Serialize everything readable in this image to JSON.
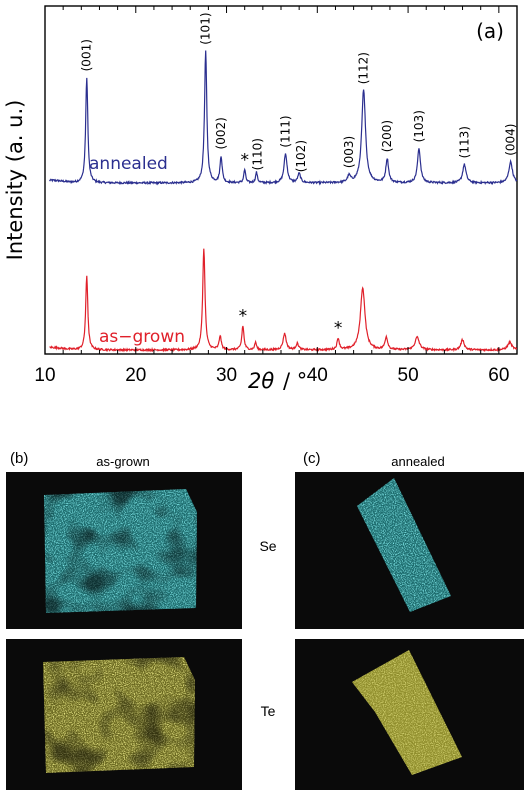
{
  "chart_data": {
    "type": "line",
    "panel_label": "(a)",
    "xlabel_symbol": "2θ",
    "xlabel_unit": "/ °",
    "ylabel": "Intensity (a. u.)",
    "xlim": [
      10,
      62
    ],
    "xticks": [
      10,
      20,
      30,
      40,
      50,
      60
    ],
    "grid": false,
    "series": [
      {
        "name": "annealed",
        "color": "#2b2f8f",
        "peaks": [
          {
            "x": 14.6,
            "h": 0.8,
            "w": 0.14
          },
          {
            "x": 27.7,
            "h": 1.0,
            "w": 0.15
          },
          {
            "x": 29.4,
            "h": 0.2,
            "w": 0.14
          },
          {
            "x": 32.0,
            "h": 0.1,
            "w": 0.12
          },
          {
            "x": 33.3,
            "h": 0.08,
            "w": 0.12
          },
          {
            "x": 36.5,
            "h": 0.22,
            "w": 0.2
          },
          {
            "x": 38.0,
            "h": 0.07,
            "w": 0.18
          },
          {
            "x": 43.5,
            "h": 0.05,
            "w": 0.2
          },
          {
            "x": 45.1,
            "h": 0.7,
            "w": 0.25
          },
          {
            "x": 47.7,
            "h": 0.18,
            "w": 0.18
          },
          {
            "x": 51.2,
            "h": 0.26,
            "w": 0.2
          },
          {
            "x": 56.2,
            "h": 0.14,
            "w": 0.22
          },
          {
            "x": 61.3,
            "h": 0.16,
            "w": 0.24
          }
        ]
      },
      {
        "name": "as−grown",
        "color": "#e0202a",
        "peaks": [
          {
            "x": 14.6,
            "h": 0.58,
            "w": 0.14
          },
          {
            "x": 27.5,
            "h": 0.8,
            "w": 0.15
          },
          {
            "x": 29.3,
            "h": 0.11,
            "w": 0.14
          },
          {
            "x": 31.8,
            "h": 0.19,
            "w": 0.14
          },
          {
            "x": 33.2,
            "h": 0.06,
            "w": 0.12
          },
          {
            "x": 36.4,
            "h": 0.13,
            "w": 0.2
          },
          {
            "x": 37.8,
            "h": 0.05,
            "w": 0.18
          },
          {
            "x": 42.3,
            "h": 0.09,
            "w": 0.15
          },
          {
            "x": 45.0,
            "h": 0.49,
            "w": 0.3
          },
          {
            "x": 47.6,
            "h": 0.1,
            "w": 0.18
          },
          {
            "x": 51.0,
            "h": 0.1,
            "w": 0.28
          },
          {
            "x": 56.0,
            "h": 0.08,
            "w": 0.22
          },
          {
            "x": 61.2,
            "h": 0.06,
            "w": 0.28
          }
        ]
      }
    ],
    "peak_labels": [
      {
        "text": "(001)",
        "x": 14.6
      },
      {
        "text": "(101)",
        "x": 27.7
      },
      {
        "text": "(002)",
        "x": 29.4
      },
      {
        "text": "(110)",
        "x": 33.4
      },
      {
        "text": "(111)",
        "x": 36.5
      },
      {
        "text": "(102)",
        "x": 38.2
      },
      {
        "text": "(003)",
        "x": 43.5
      },
      {
        "text": "(112)",
        "x": 45.1
      },
      {
        "text": "(200)",
        "x": 47.7
      },
      {
        "text": "(103)",
        "x": 51.2
      },
      {
        "text": "(113)",
        "x": 56.2
      },
      {
        "text": "(004)",
        "x": 61.3
      }
    ],
    "asterisk_markers": [
      {
        "text": "*",
        "x": 32.0,
        "series": "annealed"
      },
      {
        "text": "*",
        "x": 31.8,
        "series": "as−grown"
      },
      {
        "text": "*",
        "x": 42.3,
        "series": "as−grown"
      }
    ]
  },
  "maps": {
    "panel_b_label": "(b)",
    "panel_b_title": "as-grown",
    "panel_c_label": "(c)",
    "panel_c_title": "annealed",
    "row_se": "Se",
    "row_te": "Te",
    "se_color": "#35c2c4",
    "te_color": "#c9c63a",
    "background_color": "#0a0a0a"
  }
}
